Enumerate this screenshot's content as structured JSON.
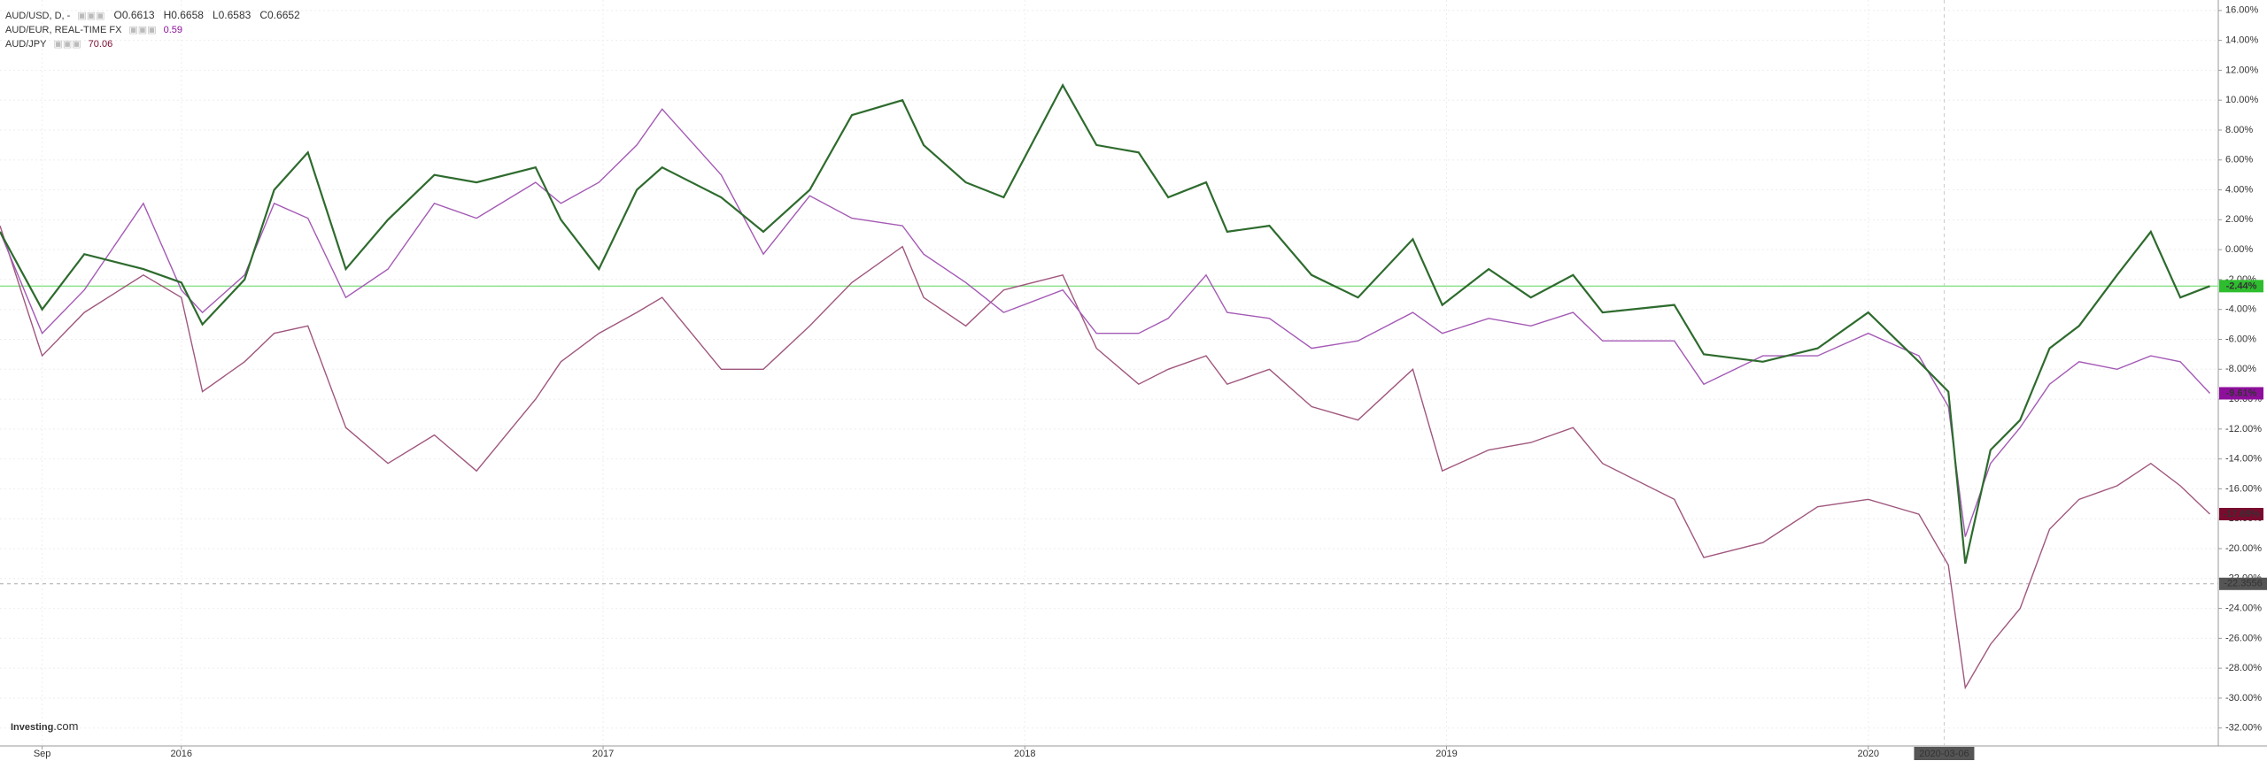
{
  "chart_data": {
    "type": "line",
    "x": [
      2015.57,
      2015.67,
      2015.77,
      2015.91,
      2016.0,
      2016.05,
      2016.15,
      2016.22,
      2016.3,
      2016.39,
      2016.49,
      2016.6,
      2016.7,
      2016.84,
      2016.9,
      2016.99,
      2017.08,
      2017.14,
      2017.28,
      2017.38,
      2017.49,
      2017.59,
      2017.71,
      2017.76,
      2017.86,
      2017.95,
      2018.09,
      2018.17,
      2018.27,
      2018.34,
      2018.43,
      2018.48,
      2018.58,
      2018.68,
      2018.79,
      2018.92,
      2018.99,
      2019.1,
      2019.2,
      2019.3,
      2019.37,
      2019.54,
      2019.61,
      2019.75,
      2019.88,
      2020.0,
      2020.12,
      2020.19,
      2020.23,
      2020.29,
      2020.36,
      2020.43,
      2020.5,
      2020.59,
      2020.67,
      2020.74,
      2020.81
    ],
    "series": [
      {
        "name": "AUD/USD, D, -",
        "color": "#2e6b2e",
        "badge_color": "#2ebd2e",
        "ohlc_labels": [
          "O0.6613",
          "H0.6658",
          "L0.6583",
          "C0.6652"
        ],
        "last_label": "-2.44%",
        "values": [
          1.2,
          -4,
          -0.3,
          -1.3,
          -2.2,
          -5,
          -2,
          4,
          6.5,
          -1.3,
          2,
          5,
          4.5,
          5.5,
          2,
          -1.3,
          4,
          5.5,
          3.5,
          1.2,
          4,
          9,
          10,
          7,
          4.5,
          3.5,
          11,
          7,
          6.5,
          3.5,
          4.5,
          1.2,
          1.6,
          -1.7,
          -3.2,
          0.7,
          -3.7,
          -1.3,
          -3.2,
          -1.7,
          -4.2,
          -3.7,
          -7,
          -7.5,
          -6.6,
          -4.2,
          -7.5,
          -9.5,
          -21,
          -13.4,
          -11.4,
          -6.6,
          -5.1,
          -1.7,
          1.2,
          -3.2,
          -2.44
        ]
      },
      {
        "name": "AUD/EUR, REAL-TIME FX",
        "color": "#a45ab5",
        "badge_color": "#8e0f9c",
        "price_label": "0.59",
        "last_label": "-9.61%",
        "values": [
          1.2,
          -5.6,
          -2.7,
          3.1,
          -2.7,
          -4.2,
          -1.7,
          3.1,
          2.1,
          -3.2,
          -1.3,
          3.1,
          2.1,
          4.5,
          3.1,
          4.5,
          7,
          9.4,
          5,
          -0.3,
          3.6,
          2.1,
          1.6,
          -0.3,
          -2.2,
          -4.2,
          -2.7,
          -5.6,
          -5.6,
          -4.6,
          -1.7,
          -4.2,
          -4.6,
          -6.6,
          -6.1,
          -4.2,
          -5.6,
          -4.6,
          -5.1,
          -4.2,
          -6.1,
          -6.1,
          -9,
          -7.1,
          -7.1,
          -5.6,
          -7.1,
          -10.5,
          -19.2,
          -14.3,
          -11.9,
          -9,
          -7.5,
          -8,
          -7.1,
          -7.5,
          -9.61
        ]
      },
      {
        "name": "AUD/JPY",
        "color": "#a0577e",
        "badge_color": "#7a0a2e",
        "price_label": "70.06",
        "last_label": "-17.69%",
        "values": [
          1.6,
          -7.1,
          -4.2,
          -1.7,
          -3.2,
          -9.5,
          -7.5,
          -5.6,
          -5.1,
          -11.9,
          -14.3,
          -12.4,
          -14.8,
          -10,
          -7.5,
          -5.6,
          -4.2,
          -3.2,
          -8,
          -8,
          -5.1,
          -2.2,
          0.2,
          -3.2,
          -5.1,
          -2.7,
          -1.7,
          -6.6,
          -9,
          -8,
          -7.1,
          -9,
          -8,
          -10.5,
          -11.4,
          -8,
          -14.8,
          -13.4,
          -12.9,
          -11.9,
          -14.3,
          -16.7,
          -20.6,
          -19.6,
          -17.2,
          -16.7,
          -17.7,
          -21.1,
          -29.3,
          -26.4,
          -24,
          -18.7,
          -16.7,
          -15.8,
          -14.3,
          -15.8,
          -17.69
        ]
      }
    ],
    "xlim": [
      2015.57,
      2020.83
    ],
    "xticks": [
      {
        "value": 2015.67,
        "label": "Sep"
      },
      2016,
      2017,
      2018,
      2019,
      2020
    ],
    "ylim": [
      -33.2,
      16.7
    ],
    "yticks": [
      {
        "value": 16,
        "label": "16.00%"
      },
      {
        "value": 14,
        "label": "14.00%"
      },
      {
        "value": 12,
        "label": "12.00%"
      },
      {
        "value": 10,
        "label": "10.00%"
      },
      {
        "value": 8,
        "label": "8.00%"
      },
      {
        "value": 6,
        "label": "6.00%"
      },
      {
        "value": 4,
        "label": "4.00%"
      },
      {
        "value": 2,
        "label": "2.00%"
      },
      {
        "value": 0,
        "label": "0.00%"
      },
      {
        "value": -2,
        "label": "-2.00%"
      },
      {
        "value": -4,
        "label": "-4.00%"
      },
      {
        "value": -6,
        "label": "-6.00%"
      },
      {
        "value": -8,
        "label": "-8.00%"
      },
      {
        "value": -10,
        "label": "-10.00%"
      },
      {
        "value": -12,
        "label": "-12.00%"
      },
      {
        "value": -14,
        "label": "-14.00%"
      },
      {
        "value": -16,
        "label": "-16.00%"
      },
      {
        "value": -18,
        "label": "-18.00%"
      },
      {
        "value": -20,
        "label": "-20.00%"
      },
      {
        "value": -22,
        "label": "-22.00%"
      },
      {
        "value": -24,
        "label": "-24.00%"
      },
      {
        "value": -26,
        "label": "-26.00%"
      },
      {
        "value": -28,
        "label": "-28.00%"
      },
      {
        "value": -30,
        "label": "-30.00%"
      },
      {
        "value": -32,
        "label": "-32.00%"
      }
    ],
    "grid": true,
    "crosshair": {
      "y": -22.3556,
      "x": 2020.18,
      "x_label": "2020-03-06"
    },
    "watermark": "Investing",
    "watermark_suffix": ".com"
  }
}
